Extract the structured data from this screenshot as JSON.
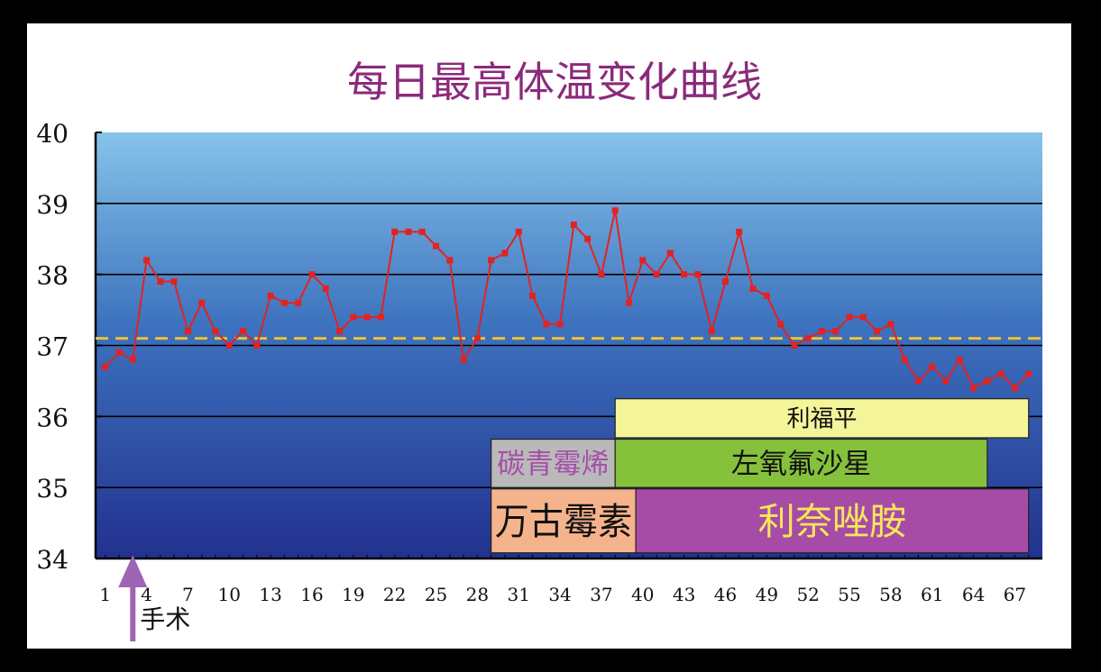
{
  "chart_data": {
    "type": "line",
    "title": "每日最高体温变化曲线",
    "xlabel": "",
    "ylabel": "",
    "ylim": [
      34,
      40
    ],
    "xlim": [
      1,
      68
    ],
    "yticks": [
      34,
      35,
      36,
      37,
      38,
      39,
      40
    ],
    "xticks": [
      1,
      4,
      7,
      10,
      13,
      16,
      19,
      22,
      25,
      28,
      31,
      34,
      37,
      40,
      43,
      46,
      49,
      52,
      55,
      58,
      61,
      64,
      67
    ],
    "grid": true,
    "reference_line": {
      "value": 37.1,
      "style": "dashed",
      "color": "#e8c23a"
    },
    "series": [
      {
        "color": "#e32222",
        "x": [
          1,
          2,
          3,
          4,
          5,
          6,
          7,
          8,
          9,
          10,
          11,
          12,
          13,
          14,
          15,
          16,
          17,
          18,
          19,
          20,
          21,
          22,
          23,
          24,
          25,
          26,
          27,
          28,
          29,
          30,
          31,
          32,
          33,
          34,
          35,
          36,
          37,
          38,
          39,
          40,
          41,
          42,
          43,
          44,
          45,
          46,
          47,
          48,
          49,
          50,
          51,
          52,
          53,
          54,
          55,
          56,
          57,
          58,
          59,
          60,
          61,
          62,
          63,
          64,
          65,
          66,
          67,
          68
        ],
        "values": [
          36.7,
          36.9,
          36.8,
          38.2,
          37.9,
          37.9,
          37.2,
          37.6,
          37.2,
          37.0,
          37.2,
          37.0,
          37.7,
          37.6,
          37.6,
          38.0,
          37.8,
          37.2,
          37.4,
          37.4,
          37.4,
          38.6,
          38.6,
          38.6,
          38.4,
          38.2,
          36.8,
          37.1,
          38.2,
          38.3,
          38.6,
          37.7,
          37.3,
          37.3,
          38.7,
          38.5,
          38.0,
          38.9,
          37.6,
          38.2,
          38.0,
          38.3,
          38.0,
          38.0,
          37.2,
          37.9,
          38.6,
          37.8,
          37.7,
          37.3,
          37.0,
          37.1,
          37.2,
          37.2,
          37.4,
          37.4,
          37.2,
          37.3,
          36.8,
          36.5,
          36.7,
          36.5,
          36.8,
          36.4,
          36.5,
          36.6,
          36.4,
          36.6
        ]
      }
    ],
    "annotations": [
      {
        "text": "手术",
        "x": 3,
        "marker": "up-arrow",
        "color": "#a064b4"
      }
    ],
    "drug_bars": [
      {
        "label": "利福平",
        "x_start": 38,
        "x_end": 68,
        "y_top": 36.25,
        "y_bottom": 35.7,
        "fill": "#f4f49a",
        "text_color": "#111111"
      },
      {
        "label": "碳青霉烯",
        "x_start": 29,
        "x_end": 38,
        "y_top": 35.68,
        "y_bottom": 35.0,
        "fill": "#b9b9b9",
        "text_color": "#a64fa8"
      },
      {
        "label": "左氧氟沙星",
        "x_start": 38,
        "x_end": 65,
        "y_top": 35.68,
        "y_bottom": 35.0,
        "fill": "#86c13c",
        "text_color": "#111111"
      },
      {
        "label": "万古霉素",
        "x_start": 29,
        "x_end": 39.5,
        "y_top": 34.98,
        "y_bottom": 34.08,
        "fill": "#f5b38c",
        "text_color": "#111111"
      },
      {
        "label": "利奈唑胺",
        "x_start": 39.5,
        "x_end": 68,
        "y_top": 34.98,
        "y_bottom": 34.08,
        "fill": "#a74ca6",
        "text_color": "#f6e65a"
      }
    ],
    "colors": {
      "title": "#8b2a7c",
      "plot_top": "#86c4ea",
      "plot_mid": "#3d72be",
      "plot_bottom": "#22318f",
      "gridline": "#000000"
    }
  }
}
